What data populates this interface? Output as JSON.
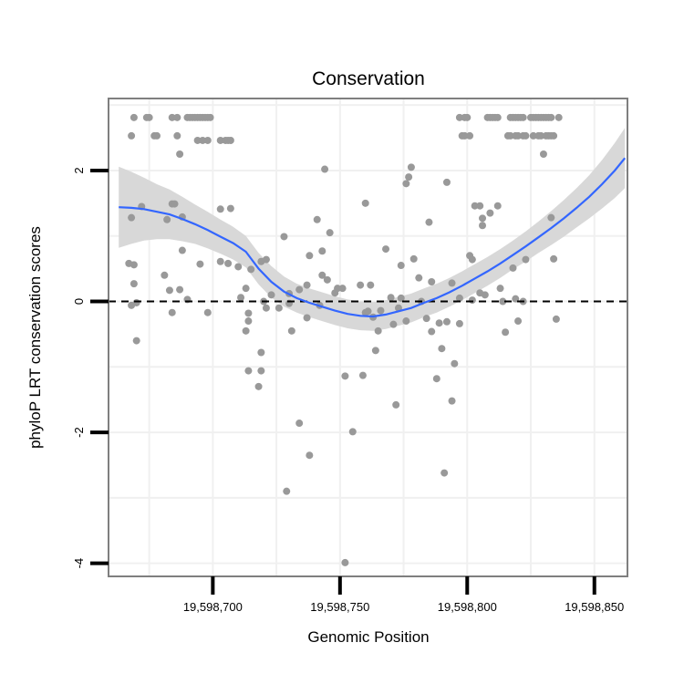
{
  "chart_data": {
    "type": "scatter",
    "title": "Conservation",
    "xlabel": "Genomic Position",
    "ylabel": "phyloP LRT conservation scores",
    "xlim": [
      19598659,
      19598863
    ],
    "ylim": [
      -4.2,
      3.1
    ],
    "x_ticks": [
      {
        "value": 19598700,
        "label": "19,598,700"
      },
      {
        "value": 19598750,
        "label": "19,598,750"
      },
      {
        "value": 19598800,
        "label": "19,598,800"
      },
      {
        "value": 19598850,
        "label": "19,598,850"
      }
    ],
    "y_ticks": [
      {
        "value": -4,
        "label": "-4"
      },
      {
        "value": -2,
        "label": "-2"
      },
      {
        "value": 0,
        "label": "0"
      },
      {
        "value": 2,
        "label": "2"
      }
    ],
    "reference_line": {
      "y": 0,
      "style": "dashed"
    },
    "grid": true,
    "colors": {
      "points": "#999999",
      "smooth_line": "#3366ff",
      "confidence_band": "#d6d6d6",
      "grid": "#f0f0f0",
      "panel_border": "#7f7f7f"
    },
    "smooth": {
      "method": "loess",
      "x": [
        19598663,
        19598668,
        19598673,
        19598678,
        19598683,
        19598688,
        19598693,
        19598698,
        19598703,
        19598708,
        19598713,
        19598718,
        19598723,
        19598728,
        19598733,
        19598738,
        19598743,
        19598748,
        19598753,
        19598758,
        19598763,
        19598768,
        19598773,
        19598778,
        19598783,
        19598788,
        19598793,
        19598798,
        19598803,
        19598808,
        19598813,
        19598818,
        19598823,
        19598828,
        19598833,
        19598838,
        19598843,
        19598848,
        19598853,
        19598858,
        19598862
      ],
      "y": [
        1.44,
        1.43,
        1.41,
        1.37,
        1.33,
        1.26,
        1.18,
        1.09,
        0.99,
        0.89,
        0.76,
        0.5,
        0.3,
        0.15,
        0.05,
        -0.02,
        -0.08,
        -0.14,
        -0.19,
        -0.22,
        -0.23,
        -0.2,
        -0.15,
        -0.1,
        -0.02,
        0.05,
        0.14,
        0.24,
        0.35,
        0.46,
        0.58,
        0.71,
        0.84,
        0.98,
        1.12,
        1.27,
        1.43,
        1.6,
        1.79,
        2.0,
        2.19
      ],
      "se": [
        0.62,
        0.55,
        0.48,
        0.42,
        0.38,
        0.34,
        0.3,
        0.28,
        0.26,
        0.25,
        0.24,
        0.24,
        0.24,
        0.23,
        0.22,
        0.22,
        0.22,
        0.22,
        0.22,
        0.22,
        0.22,
        0.22,
        0.22,
        0.22,
        0.22,
        0.22,
        0.22,
        0.22,
        0.22,
        0.22,
        0.22,
        0.22,
        0.23,
        0.24,
        0.26,
        0.28,
        0.3,
        0.33,
        0.37,
        0.42,
        0.46
      ]
    },
    "points": [
      {
        "x": 19598669,
        "y": 2.81
      },
      {
        "x": 19598674,
        "y": 2.81
      },
      {
        "x": 19598675,
        "y": 2.81
      },
      {
        "x": 19598668,
        "y": 2.53
      },
      {
        "x": 19598677,
        "y": 2.53
      },
      {
        "x": 19598678,
        "y": 2.53
      },
      {
        "x": 19598684,
        "y": 2.81
      },
      {
        "x": 19598686,
        "y": 2.81
      },
      {
        "x": 19598690,
        "y": 2.81
      },
      {
        "x": 19598691,
        "y": 2.81
      },
      {
        "x": 19598692,
        "y": 2.81
      },
      {
        "x": 19598693,
        "y": 2.81
      },
      {
        "x": 19598694,
        "y": 2.81
      },
      {
        "x": 19598695,
        "y": 2.81
      },
      {
        "x": 19598696,
        "y": 2.81
      },
      {
        "x": 19598697,
        "y": 2.81
      },
      {
        "x": 19598698,
        "y": 2.81
      },
      {
        "x": 19598699,
        "y": 2.81
      },
      {
        "x": 19598686,
        "y": 2.53
      },
      {
        "x": 19598694,
        "y": 2.46
      },
      {
        "x": 19598696,
        "y": 2.46
      },
      {
        "x": 19598698,
        "y": 2.46
      },
      {
        "x": 19598703,
        "y": 2.46
      },
      {
        "x": 19598705,
        "y": 2.46
      },
      {
        "x": 19598706,
        "y": 2.46
      },
      {
        "x": 19598707,
        "y": 2.46
      },
      {
        "x": 19598687,
        "y": 2.25
      },
      {
        "x": 19598684,
        "y": 1.49
      },
      {
        "x": 19598685,
        "y": 1.49
      },
      {
        "x": 19598688,
        "y": 1.29
      },
      {
        "x": 19598682,
        "y": 1.25
      },
      {
        "x": 19598703,
        "y": 1.41
      },
      {
        "x": 19598707,
        "y": 1.42
      },
      {
        "x": 19598703,
        "y": 0.61
      },
      {
        "x": 19598706,
        "y": 0.58
      },
      {
        "x": 19598695,
        "y": 0.57
      },
      {
        "x": 19598688,
        "y": 0.78
      },
      {
        "x": 19598681,
        "y": 0.4
      },
      {
        "x": 19598687,
        "y": 0.18
      },
      {
        "x": 19598683,
        "y": 0.17
      },
      {
        "x": 19598690,
        "y": 0.03
      },
      {
        "x": 19598684,
        "y": -0.17
      },
      {
        "x": 19598698,
        "y": -0.17
      },
      {
        "x": 19598669,
        "y": 0.56
      },
      {
        "x": 19598667,
        "y": 0.58
      },
      {
        "x": 19598668,
        "y": 1.28
      },
      {
        "x": 19598672,
        "y": 1.45
      },
      {
        "x": 19598669,
        "y": 0.27
      },
      {
        "x": 19598670,
        "y": -0.02
      },
      {
        "x": 19598668,
        "y": -0.06
      },
      {
        "x": 19598670,
        "y": -0.6
      },
      {
        "x": 19598710,
        "y": 0.53
      },
      {
        "x": 19598711,
        "y": 0.06
      },
      {
        "x": 19598713,
        "y": 0.2
      },
      {
        "x": 19598714,
        "y": -0.18
      },
      {
        "x": 19598713,
        "y": -0.45
      },
      {
        "x": 19598714,
        "y": -0.3
      },
      {
        "x": 19598715,
        "y": 0.49
      },
      {
        "x": 19598719,
        "y": 0.61
      },
      {
        "x": 19598721,
        "y": 0.64
      },
      {
        "x": 19598720,
        "y": 0.0
      },
      {
        "x": 19598721,
        "y": -0.1
      },
      {
        "x": 19598719,
        "y": -0.78
      },
      {
        "x": 19598714,
        "y": -1.06
      },
      {
        "x": 19598718,
        "y": -1.3
      },
      {
        "x": 19598719,
        "y": -1.06
      },
      {
        "x": 19598723,
        "y": 0.1
      },
      {
        "x": 19598726,
        "y": -0.1
      },
      {
        "x": 19598728,
        "y": 0.99
      },
      {
        "x": 19598730,
        "y": -0.03
      },
      {
        "x": 19598730,
        "y": 0.12
      },
      {
        "x": 19598731,
        "y": -0.45
      },
      {
        "x": 19598734,
        "y": -1.86
      },
      {
        "x": 19598729,
        "y": -2.9
      },
      {
        "x": 19598734,
        "y": 0.18
      },
      {
        "x": 19598737,
        "y": 0.25
      },
      {
        "x": 19598737,
        "y": -0.25
      },
      {
        "x": 19598738,
        "y": 0.7
      },
      {
        "x": 19598741,
        "y": 1.25
      },
      {
        "x": 19598743,
        "y": 0.77
      },
      {
        "x": 19598743,
        "y": 0.4
      },
      {
        "x": 19598745,
        "y": 0.33
      },
      {
        "x": 19598742,
        "y": -0.06
      },
      {
        "x": 19598738,
        "y": -2.35
      },
      {
        "x": 19598744,
        "y": 2.02
      },
      {
        "x": 19598746,
        "y": 1.05
      },
      {
        "x": 19598748,
        "y": 0.13
      },
      {
        "x": 19598749,
        "y": 0.2
      },
      {
        "x": 19598751,
        "y": 0.2
      },
      {
        "x": 19598752,
        "y": -1.14
      },
      {
        "x": 19598752,
        "y": -3.99
      },
      {
        "x": 19598755,
        "y": -1.99
      },
      {
        "x": 19598758,
        "y": 0.25
      },
      {
        "x": 19598760,
        "y": 1.5
      },
      {
        "x": 19598759,
        "y": -1.13
      },
      {
        "x": 19598760,
        "y": -0.17
      },
      {
        "x": 19598761,
        "y": -0.15
      },
      {
        "x": 19598762,
        "y": 0.25
      },
      {
        "x": 19598763,
        "y": -0.24
      },
      {
        "x": 19598764,
        "y": -0.75
      },
      {
        "x": 19598765,
        "y": -0.45
      },
      {
        "x": 19598766,
        "y": -0.14
      },
      {
        "x": 19598768,
        "y": 0.8
      },
      {
        "x": 19598770,
        "y": 0.06
      },
      {
        "x": 19598771,
        "y": -0.35
      },
      {
        "x": 19598772,
        "y": -1.58
      },
      {
        "x": 19598773,
        "y": -0.1
      },
      {
        "x": 19598774,
        "y": 0.55
      },
      {
        "x": 19598774,
        "y": 0.05
      },
      {
        "x": 19598776,
        "y": -0.3
      },
      {
        "x": 19598776,
        "y": 1.8
      },
      {
        "x": 19598777,
        "y": 1.9
      },
      {
        "x": 19598778,
        "y": 2.05
      },
      {
        "x": 19598779,
        "y": 0.65
      },
      {
        "x": 19598781,
        "y": 0.36
      },
      {
        "x": 19598782,
        "y": 0.0
      },
      {
        "x": 19598784,
        "y": -0.26
      },
      {
        "x": 19598785,
        "y": 1.21
      },
      {
        "x": 19598786,
        "y": -0.46
      },
      {
        "x": 19598786,
        "y": 0.3
      },
      {
        "x": 19598788,
        "y": -1.18
      },
      {
        "x": 19598789,
        "y": -0.33
      },
      {
        "x": 19598790,
        "y": -0.72
      },
      {
        "x": 19598791,
        "y": -2.62
      },
      {
        "x": 19598792,
        "y": 1.82
      },
      {
        "x": 19598792,
        "y": -0.31
      },
      {
        "x": 19598794,
        "y": -1.52
      },
      {
        "x": 19598794,
        "y": 0.28
      },
      {
        "x": 19598795,
        "y": -0.95
      },
      {
        "x": 19598797,
        "y": 0.05
      },
      {
        "x": 19598797,
        "y": -0.34
      },
      {
        "x": 19598797,
        "y": 2.81
      },
      {
        "x": 19598799,
        "y": 2.81
      },
      {
        "x": 19598800,
        "y": 2.81
      },
      {
        "x": 19598798,
        "y": 2.53
      },
      {
        "x": 19598799,
        "y": 2.53
      },
      {
        "x": 19598801,
        "y": 2.53
      },
      {
        "x": 19598801,
        "y": 0.7
      },
      {
        "x": 19598802,
        "y": 0.64
      },
      {
        "x": 19598802,
        "y": 0.02
      },
      {
        "x": 19598803,
        "y": 1.46
      },
      {
        "x": 19598805,
        "y": 1.46
      },
      {
        "x": 19598805,
        "y": 0.13
      },
      {
        "x": 19598806,
        "y": 1.27
      },
      {
        "x": 19598806,
        "y": 1.16
      },
      {
        "x": 19598807,
        "y": 0.1
      },
      {
        "x": 19598808,
        "y": 2.81
      },
      {
        "x": 19598809,
        "y": 2.81
      },
      {
        "x": 19598810,
        "y": 2.81
      },
      {
        "x": 19598811,
        "y": 2.81
      },
      {
        "x": 19598812,
        "y": 2.81
      },
      {
        "x": 19598809,
        "y": 1.35
      },
      {
        "x": 19598812,
        "y": 1.46
      },
      {
        "x": 19598813,
        "y": 0.2
      },
      {
        "x": 19598814,
        "y": 0.0
      },
      {
        "x": 19598815,
        "y": -0.47
      },
      {
        "x": 19598817,
        "y": 2.81
      },
      {
        "x": 19598818,
        "y": 2.81
      },
      {
        "x": 19598819,
        "y": 2.81
      },
      {
        "x": 19598820,
        "y": 2.81
      },
      {
        "x": 19598821,
        "y": 2.81
      },
      {
        "x": 19598822,
        "y": 2.81
      },
      {
        "x": 19598816,
        "y": 2.53
      },
      {
        "x": 19598817,
        "y": 2.53
      },
      {
        "x": 19598819,
        "y": 2.53
      },
      {
        "x": 19598820,
        "y": 2.53
      },
      {
        "x": 19598822,
        "y": 2.53
      },
      {
        "x": 19598823,
        "y": 2.53
      },
      {
        "x": 19598818,
        "y": 0.51
      },
      {
        "x": 19598819,
        "y": 0.04
      },
      {
        "x": 19598820,
        "y": -0.3
      },
      {
        "x": 19598822,
        "y": 0.0
      },
      {
        "x": 19598823,
        "y": 0.64
      },
      {
        "x": 19598825,
        "y": 2.81
      },
      {
        "x": 19598826,
        "y": 2.81
      },
      {
        "x": 19598827,
        "y": 2.81
      },
      {
        "x": 19598828,
        "y": 2.81
      },
      {
        "x": 19598829,
        "y": 2.81
      },
      {
        "x": 19598830,
        "y": 2.81
      },
      {
        "x": 19598831,
        "y": 2.81
      },
      {
        "x": 19598832,
        "y": 2.81
      },
      {
        "x": 19598833,
        "y": 2.81
      },
      {
        "x": 19598826,
        "y": 2.53
      },
      {
        "x": 19598828,
        "y": 2.53
      },
      {
        "x": 19598829,
        "y": 2.53
      },
      {
        "x": 19598831,
        "y": 2.53
      },
      {
        "x": 19598832,
        "y": 2.53
      },
      {
        "x": 19598833,
        "y": 2.53
      },
      {
        "x": 19598834,
        "y": 2.53
      },
      {
        "x": 19598830,
        "y": 2.25
      },
      {
        "x": 19598833,
        "y": 1.28
      },
      {
        "x": 19598834,
        "y": 0.65
      },
      {
        "x": 19598835,
        "y": -0.27
      },
      {
        "x": 19598836,
        "y": 2.81
      }
    ]
  }
}
